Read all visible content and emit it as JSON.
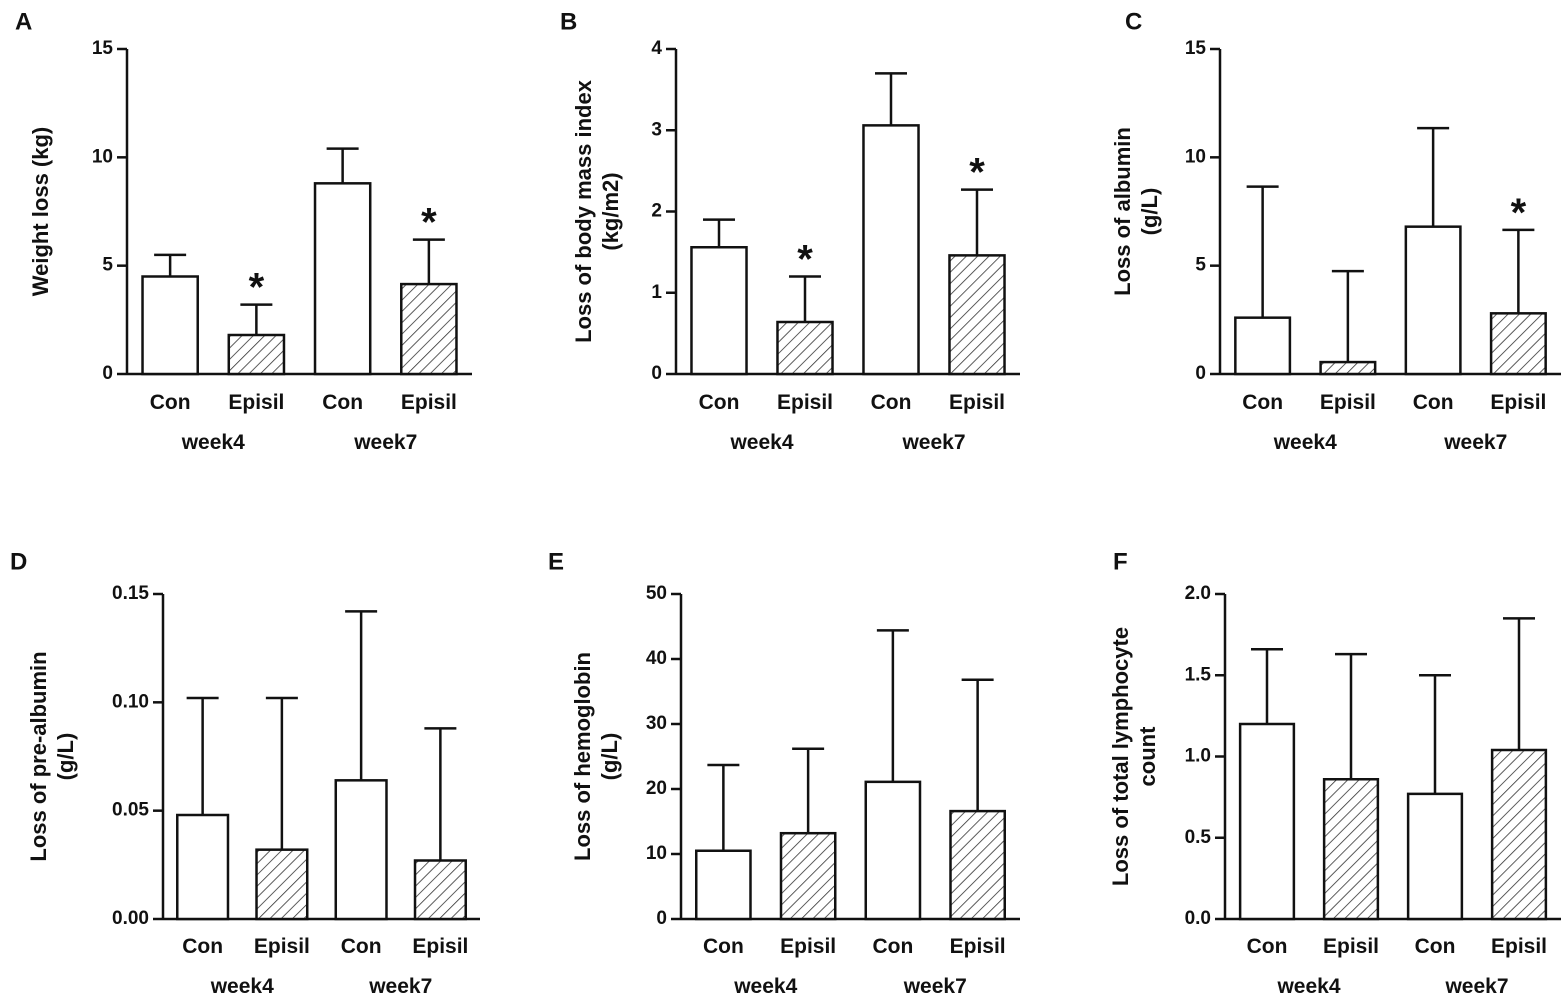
{
  "colors": {
    "ink": "#111111",
    "bar_fill": "#ffffff",
    "hatch": "#333333",
    "background": "#ffffff"
  },
  "chart_data": [
    {
      "panel": "A",
      "type": "bar",
      "ylabel": [
        "Weight loss (kg)"
      ],
      "ylim": [
        0,
        15
      ],
      "yticks": [
        0,
        5,
        10,
        15
      ],
      "ytick_labels": [
        "0",
        "5",
        "10",
        "15"
      ],
      "categories": [
        "Con",
        "Episil",
        "Con",
        "Episil"
      ],
      "groups": [
        "week4",
        "week7"
      ],
      "values": [
        4.5,
        1.8,
        8.8,
        4.15
      ],
      "errors": [
        1.0,
        1.4,
        1.6,
        2.05
      ],
      "hatched": [
        false,
        true,
        false,
        true
      ],
      "significance": [
        "",
        "*",
        "",
        "*"
      ]
    },
    {
      "panel": "B",
      "type": "bar",
      "ylabel": [
        "Loss of body mass index",
        "(kg/m2)"
      ],
      "ylim": [
        0,
        4
      ],
      "yticks": [
        0,
        1,
        2,
        3,
        4
      ],
      "ytick_labels": [
        "0",
        "1",
        "2",
        "3",
        "4"
      ],
      "categories": [
        "Con",
        "Episil",
        "Con",
        "Episil"
      ],
      "groups": [
        "week4",
        "week7"
      ],
      "values": [
        1.56,
        0.64,
        3.06,
        1.46
      ],
      "errors": [
        0.34,
        0.56,
        0.64,
        0.81
      ],
      "hatched": [
        false,
        true,
        false,
        true
      ],
      "significance": [
        "",
        "*",
        "",
        "*"
      ]
    },
    {
      "panel": "C",
      "type": "bar",
      "ylabel": [
        "Loss of albumin",
        "(g/L)"
      ],
      "ylim": [
        0,
        15
      ],
      "yticks": [
        0,
        5,
        10,
        15
      ],
      "ytick_labels": [
        "0",
        "5",
        "10",
        "15"
      ],
      "categories": [
        "Con",
        "Episil",
        "Con",
        "Episil"
      ],
      "groups": [
        "week4",
        "week7"
      ],
      "values": [
        2.6,
        0.55,
        6.8,
        2.8
      ],
      "errors": [
        6.05,
        4.2,
        4.55,
        3.85
      ],
      "hatched": [
        false,
        true,
        false,
        true
      ],
      "significance": [
        "",
        "",
        "",
        "*"
      ]
    },
    {
      "panel": "D",
      "type": "bar",
      "ylabel": [
        "Loss of pre-albumin",
        "(g/L)"
      ],
      "ylim": [
        0,
        0.15
      ],
      "yticks": [
        0,
        0.05,
        0.1,
        0.15
      ],
      "ytick_labels": [
        "0.00",
        "0.05",
        "0.10",
        "0.15"
      ],
      "categories": [
        "Con",
        "Episil",
        "Con",
        "Episil"
      ],
      "groups": [
        "week4",
        "week7"
      ],
      "values": [
        0.048,
        0.032,
        0.064,
        0.027
      ],
      "errors": [
        0.054,
        0.07,
        0.078,
        0.061
      ],
      "hatched": [
        false,
        true,
        false,
        true
      ],
      "significance": [
        "",
        "",
        "",
        ""
      ]
    },
    {
      "panel": "E",
      "type": "bar",
      "ylabel": [
        "Loss of hemoglobin",
        "(g/L)"
      ],
      "ylim": [
        0,
        50
      ],
      "yticks": [
        0,
        10,
        20,
        30,
        40,
        50
      ],
      "ytick_labels": [
        "0",
        "10",
        "20",
        "30",
        "40",
        "50"
      ],
      "categories": [
        "Con",
        "Episil",
        "Con",
        "Episil"
      ],
      "groups": [
        "week4",
        "week7"
      ],
      "values": [
        10.5,
        13.2,
        21.1,
        16.6
      ],
      "errors": [
        13.2,
        13.0,
        23.3,
        20.2
      ],
      "hatched": [
        false,
        true,
        false,
        true
      ],
      "significance": [
        "",
        "",
        "",
        ""
      ]
    },
    {
      "panel": "F",
      "type": "bar",
      "ylabel": [
        "Loss of total lymphocyte",
        "count"
      ],
      "ylim": [
        0,
        2
      ],
      "yticks": [
        0,
        0.5,
        1,
        1.5,
        2
      ],
      "ytick_labels": [
        "0.0",
        "0.5",
        "1.0",
        "1.5",
        "2.0"
      ],
      "categories": [
        "Con",
        "Episil",
        "Con",
        "Episil"
      ],
      "groups": [
        "week4",
        "week7"
      ],
      "values": [
        1.2,
        0.86,
        0.77,
        1.04
      ],
      "errors": [
        0.46,
        0.77,
        0.73,
        0.81
      ],
      "hatched": [
        false,
        true,
        false,
        true
      ],
      "significance": [
        "",
        "",
        "",
        ""
      ]
    }
  ]
}
